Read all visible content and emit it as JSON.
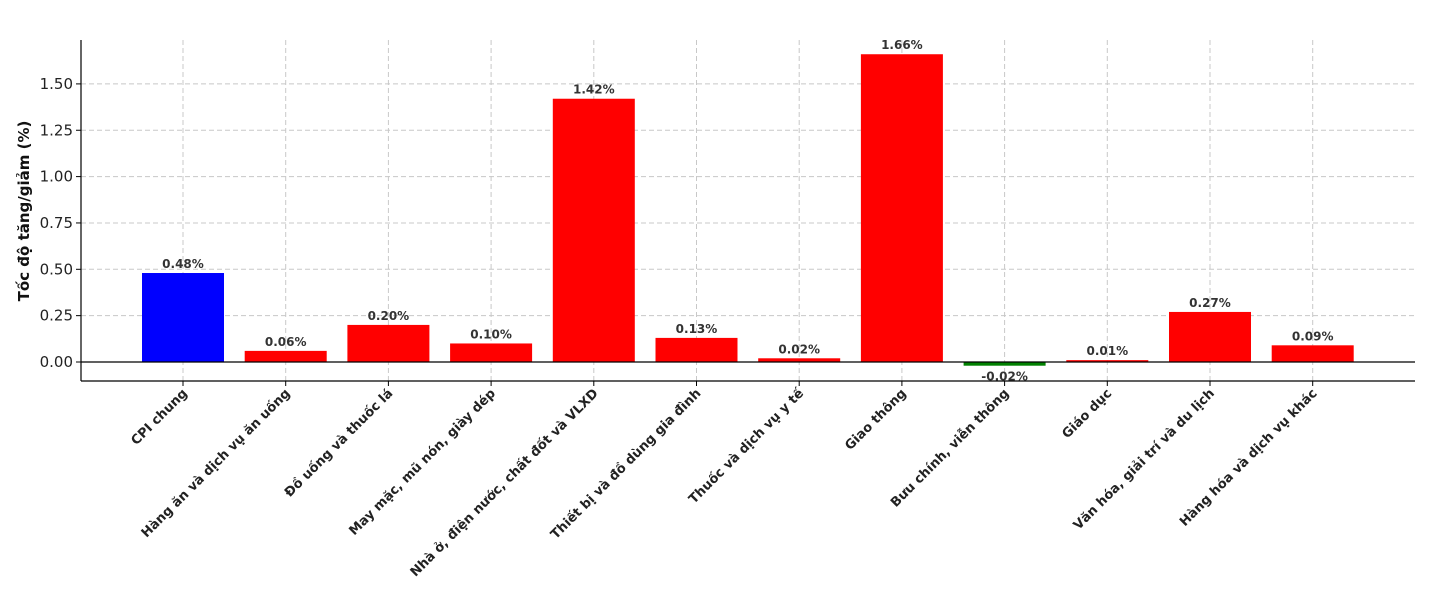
{
  "chart_data": {
    "type": "bar",
    "title": "",
    "xlabel": "",
    "ylabel": "Tốc độ tăng/giảm (%)",
    "ylim": [
      -0.1,
      1.75
    ],
    "yticks": [
      "0.00",
      "0.25",
      "0.50",
      "0.75",
      "1.00",
      "1.25",
      "1.50"
    ],
    "grid": true,
    "categories": [
      "CPI chung",
      "Hàng ăn và dịch vụ ăn uống",
      "Đồ uống và thuốc lá",
      "May mặc, mũ nón, giày dép",
      "Nhà ở, điện nước, chất đốt và VLXD",
      "Thiết bị và đồ dùng gia đình",
      "Thuốc và dịch vụ y tế",
      "Giao thông",
      "Bưu chính, viễn thông",
      "Giáo dục",
      "Văn hóa, giải trí và du lịch",
      "Hàng hóa và dịch vụ khác"
    ],
    "values": [
      0.48,
      0.06,
      0.2,
      0.1,
      1.42,
      0.13,
      0.02,
      1.66,
      -0.02,
      0.01,
      0.27,
      0.09
    ],
    "data_labels": [
      "0.48%",
      "0.06%",
      "0.20%",
      "0.10%",
      "1.42%",
      "0.13%",
      "0.02%",
      "1.66%",
      "-0.02%",
      "0.01%",
      "0.27%",
      "0.09%"
    ],
    "colors": [
      "#0000ff",
      "#ff0000",
      "#ff0000",
      "#ff0000",
      "#ff0000",
      "#ff0000",
      "#ff0000",
      "#ff0000",
      "#008000",
      "#ff0000",
      "#ff0000",
      "#ff0000"
    ]
  }
}
